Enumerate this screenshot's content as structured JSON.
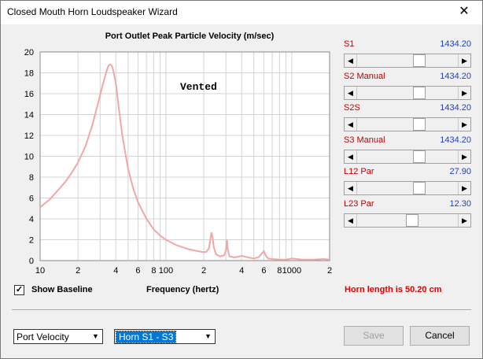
{
  "window": {
    "title": "Closed Mouth Horn Loudspeaker Wizard",
    "close_glyph": "✕"
  },
  "chart_data": {
    "type": "line",
    "title": "Port Outlet Peak Particle Velocity (m/sec)",
    "xlabel": "Frequency (hertz)",
    "ylabel": "",
    "annotation": "Vented",
    "x_scale": "log",
    "xlim": [
      10,
      2000
    ],
    "ylim": [
      0,
      20
    ],
    "y_ticks": [
      0,
      2,
      4,
      6,
      8,
      10,
      12,
      14,
      16,
      18,
      20
    ],
    "x_tick_labels": [
      {
        "value": 10,
        "label": "10"
      },
      {
        "value": 20,
        "label": "2"
      },
      {
        "value": 40,
        "label": "4"
      },
      {
        "value": 60,
        "label": "6"
      },
      {
        "value": 80,
        "label": "8"
      },
      {
        "value": 100,
        "label": "100"
      },
      {
        "value": 200,
        "label": "2"
      },
      {
        "value": 400,
        "label": "4"
      },
      {
        "value": 600,
        "label": "6"
      },
      {
        "value": 800,
        "label": "8"
      },
      {
        "value": 1000,
        "label": "1000"
      },
      {
        "value": 2000,
        "label": "2"
      }
    ],
    "grid": true,
    "line_color": "#f4a6a6",
    "series": [
      {
        "x": [
          10,
          12,
          14,
          16,
          18,
          20,
          23,
          26,
          29,
          32,
          34,
          35,
          36,
          37,
          38,
          40,
          42,
          45,
          50,
          55,
          60,
          70,
          80,
          90,
          100,
          120,
          150,
          180,
          200,
          210,
          220,
          225,
          230,
          235,
          240,
          250,
          270,
          290,
          300,
          305,
          310,
          320,
          350,
          400,
          450,
          500,
          550,
          580,
          600,
          620,
          650,
          700,
          800,
          900,
          1000,
          1200,
          1500,
          1800,
          2000
        ],
        "y": [
          5.1,
          5.9,
          6.8,
          7.6,
          8.5,
          9.4,
          11.0,
          13.0,
          15.2,
          17.2,
          18.3,
          18.7,
          18.8,
          18.7,
          18.3,
          17.0,
          14.8,
          12.0,
          8.8,
          6.9,
          5.6,
          4.0,
          3.0,
          2.4,
          2.0,
          1.5,
          1.1,
          0.9,
          0.8,
          0.85,
          1.2,
          2.0,
          2.7,
          2.2,
          1.3,
          0.6,
          0.4,
          0.5,
          1.0,
          2.0,
          1.1,
          0.4,
          0.3,
          0.45,
          0.3,
          0.2,
          0.35,
          0.7,
          0.9,
          0.5,
          0.2,
          0.15,
          0.1,
          0.1,
          0.2,
          0.1,
          0.1,
          0.15,
          0.1
        ]
      }
    ]
  },
  "params": [
    {
      "label": "S1",
      "value": "1434.20",
      "thumb": 0.62
    },
    {
      "label": "S2  Manual",
      "value": "1434.20",
      "thumb": 0.62
    },
    {
      "label": "S2S",
      "value": "1434.20",
      "thumb": 0.62
    },
    {
      "label": "S3  Manual",
      "value": "1434.20",
      "thumb": 0.62
    },
    {
      "label": "L12  Par",
      "value": "27.90",
      "thumb": 0.62
    },
    {
      "label": "L23  Par",
      "value": "12.30",
      "thumb": 0.55
    }
  ],
  "show_baseline": {
    "label": "Show Baseline",
    "checked": true,
    "check_glyph": "✓"
  },
  "horn_length": "Horn length is 50.20 cm",
  "controls": {
    "plot_select": "Port Velocity",
    "horn_select": "Horn S1 - S3",
    "save_label": "Save",
    "cancel_label": "Cancel",
    "dropdown_glyph": "▼"
  },
  "icons": {
    "left_arrow": "◀",
    "right_arrow": "▶"
  }
}
